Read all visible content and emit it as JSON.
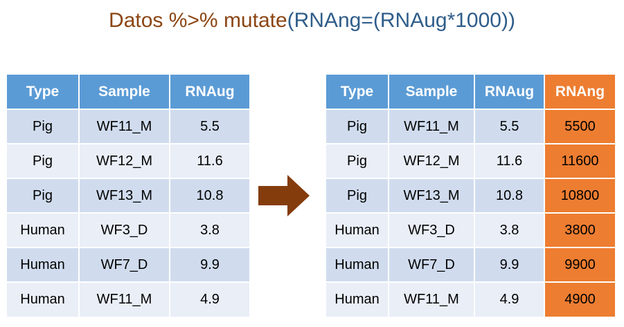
{
  "title": {
    "part1": "Datos %>% mutate",
    "part2": "(RNAng=(RNAug*1000))"
  },
  "left_table": {
    "headers": [
      "Type",
      "Sample",
      "RNAug"
    ],
    "rows": [
      [
        "Pig",
        "WF11_M",
        "5.5"
      ],
      [
        "Pig",
        "WF12_M",
        "11.6"
      ],
      [
        "Pig",
        "WF13_M",
        "10.8"
      ],
      [
        "Human",
        "WF3_D",
        "3.8"
      ],
      [
        "Human",
        "WF7_D",
        "9.9"
      ],
      [
        "Human",
        "WF11_M",
        "4.9"
      ]
    ]
  },
  "right_table": {
    "headers": [
      "Type",
      "Sample",
      "RNAug",
      "RNAng"
    ],
    "rows": [
      [
        "Pig",
        "WF11_M",
        "5.5",
        "5500"
      ],
      [
        "Pig",
        "WF12_M",
        "11.6",
        "11600"
      ],
      [
        "Pig",
        "WF13_M",
        "10.8",
        "10800"
      ],
      [
        "Human",
        "WF3_D",
        "3.8",
        "3800"
      ],
      [
        "Human",
        "WF7_D",
        "9.9",
        "9900"
      ],
      [
        "Human",
        "WF11_M",
        "4.9",
        "4900"
      ]
    ]
  },
  "colors": {
    "header_blue": "#5B9BD5",
    "row_dark": "#D0DCEE",
    "row_light": "#E9EEF7",
    "new_column_orange": "#ED7D31",
    "arrow_brown": "#843C0C",
    "title_brown": "#8B4513",
    "title_blue": "#2F5D8A"
  },
  "icons": {
    "arrow": "right-arrow-icon"
  }
}
